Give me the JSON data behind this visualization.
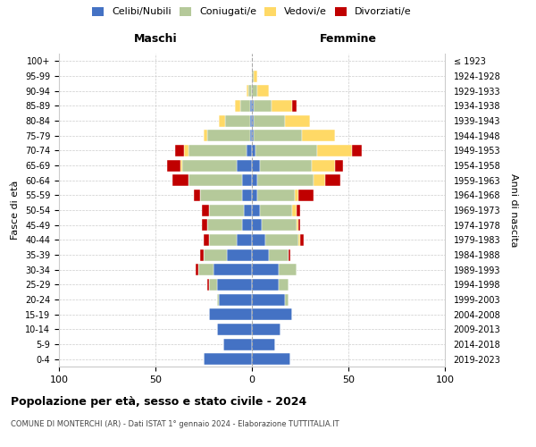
{
  "age_groups": [
    "0-4",
    "5-9",
    "10-14",
    "15-19",
    "20-24",
    "25-29",
    "30-34",
    "35-39",
    "40-44",
    "45-49",
    "50-54",
    "55-59",
    "60-64",
    "65-69",
    "70-74",
    "75-79",
    "80-84",
    "85-89",
    "90-94",
    "95-99",
    "100+"
  ],
  "birth_years": [
    "2019-2023",
    "2014-2018",
    "2009-2013",
    "2004-2008",
    "1999-2003",
    "1994-1998",
    "1989-1993",
    "1984-1988",
    "1979-1983",
    "1974-1978",
    "1969-1973",
    "1964-1968",
    "1959-1963",
    "1954-1958",
    "1949-1953",
    "1944-1948",
    "1939-1943",
    "1934-1938",
    "1929-1933",
    "1924-1928",
    "≤ 1923"
  ],
  "males": {
    "celibi": [
      25,
      15,
      18,
      22,
      17,
      18,
      20,
      13,
      8,
      5,
      4,
      5,
      5,
      8,
      3,
      1,
      1,
      1,
      0,
      0,
      0
    ],
    "coniugati": [
      0,
      0,
      0,
      0,
      1,
      4,
      8,
      12,
      14,
      18,
      18,
      22,
      28,
      28,
      30,
      22,
      13,
      5,
      2,
      0,
      0
    ],
    "vedovi": [
      0,
      0,
      0,
      0,
      0,
      0,
      0,
      0,
      0,
      0,
      0,
      0,
      0,
      1,
      2,
      2,
      3,
      3,
      1,
      0,
      0
    ],
    "divorziati": [
      0,
      0,
      0,
      0,
      0,
      1,
      1,
      2,
      3,
      3,
      4,
      3,
      8,
      7,
      5,
      0,
      0,
      0,
      0,
      0,
      0
    ]
  },
  "females": {
    "nubili": [
      20,
      12,
      15,
      21,
      17,
      14,
      14,
      9,
      7,
      5,
      4,
      3,
      3,
      4,
      2,
      1,
      1,
      1,
      0,
      0,
      0
    ],
    "coniugate": [
      0,
      0,
      0,
      0,
      2,
      5,
      9,
      10,
      17,
      18,
      17,
      19,
      29,
      27,
      32,
      25,
      16,
      9,
      3,
      1,
      0
    ],
    "vedove": [
      0,
      0,
      0,
      0,
      0,
      0,
      0,
      0,
      1,
      1,
      2,
      2,
      6,
      12,
      18,
      17,
      13,
      11,
      6,
      2,
      0
    ],
    "divorziate": [
      0,
      0,
      0,
      0,
      0,
      0,
      0,
      1,
      2,
      1,
      2,
      8,
      8,
      4,
      5,
      0,
      0,
      2,
      0,
      0,
      0
    ]
  },
  "colors": {
    "celibi_nubili": "#4472c4",
    "coniugati": "#b5c99a",
    "vedovi": "#ffd966",
    "divorziati": "#c00000"
  },
  "title": "Popolazione per età, sesso e stato civile - 2024",
  "subtitle": "COMUNE DI MONTERCHI (AR) - Dati ISTAT 1° gennaio 2024 - Elaborazione TUTTITALIA.IT",
  "maschi_label": "Maschi",
  "femmine_label": "Femmine",
  "ylabel_left": "Fasce di età",
  "ylabel_right": "Anni di nascita",
  "xlim": 100,
  "legend_labels": [
    "Celibi/Nubili",
    "Coniugati/e",
    "Vedovi/e",
    "Divorziati/e"
  ]
}
